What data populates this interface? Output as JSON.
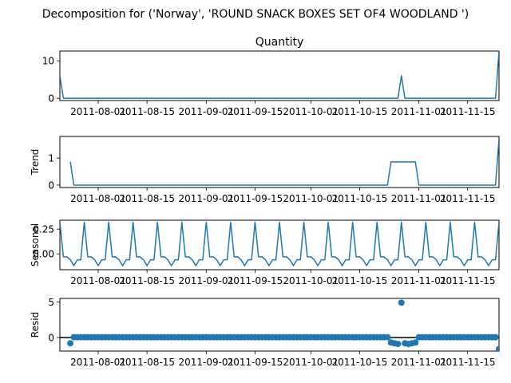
{
  "chart_data": {
    "type": "line",
    "title": "Decomposition for ('Norway', 'ROUND SNACK BOXES SET OF4 WOODLAND ')",
    "x_start": "2011-07-21",
    "x_end": "2011-11-24",
    "x_ticks": [
      "2011-08-01",
      "2011-08-15",
      "2011-09-01",
      "2011-09-15",
      "2011-10-01",
      "2011-10-15",
      "2011-11-01",
      "2011-11-15"
    ],
    "grid": false,
    "panels": [
      {
        "name": "observed",
        "subplot_title": "Quantity",
        "ylabel": "",
        "type": "line",
        "ylim": [
          -0.6,
          12.6
        ],
        "y_ticks": [
          "0",
          "10"
        ],
        "points": [
          [
            "2011-07-21",
            6
          ],
          [
            "2011-07-22",
            0
          ],
          [
            "2011-10-26",
            0
          ],
          [
            "2011-10-27",
            6
          ],
          [
            "2011-10-28",
            0
          ],
          [
            "2011-11-23",
            0
          ],
          [
            "2011-11-24",
            12.6
          ]
        ]
      },
      {
        "name": "trend",
        "subplot_title": "",
        "ylabel": "Trend",
        "type": "line",
        "ylim": [
          -0.09,
          1.8
        ],
        "y_ticks": [
          "0",
          "1"
        ],
        "points": [
          [
            "2011-07-24",
            0.86
          ],
          [
            "2011-07-25",
            0
          ],
          [
            "2011-10-23",
            0
          ],
          [
            "2011-10-24",
            0.86
          ],
          [
            "2011-10-31",
            0.86
          ],
          [
            "2011-11-01",
            0
          ],
          [
            "2011-11-23",
            0
          ],
          [
            "2011-11-24",
            1.71
          ]
        ]
      },
      {
        "name": "seasonal",
        "subplot_title": "",
        "ylabel": "Seasonal",
        "type": "line",
        "ylim": [
          -0.16,
          0.34
        ],
        "y_ticks": [
          "0.25",
          "0.00"
        ],
        "weekly_pattern": [
          0.32,
          -0.03,
          -0.03,
          -0.06,
          -0.12,
          -0.06,
          -0.06
        ],
        "pattern_start": "2011-07-21"
      },
      {
        "name": "resid",
        "subplot_title": "",
        "ylabel": "Resid",
        "type": "scatter",
        "ylim": [
          -1.9,
          5.5
        ],
        "y_ticks": [
          "0",
          "5"
        ],
        "zero_line": true,
        "baseline_value": 0.05,
        "outliers": [
          [
            "2011-07-24",
            -0.8
          ],
          [
            "2011-10-24",
            -0.7
          ],
          [
            "2011-10-25",
            -0.8
          ],
          [
            "2011-10-26",
            -0.9
          ],
          [
            "2011-10-27",
            4.9
          ],
          [
            "2011-10-28",
            -0.8
          ],
          [
            "2011-10-29",
            -0.9
          ],
          [
            "2011-10-30",
            -0.8
          ],
          [
            "2011-10-31",
            -0.7
          ],
          [
            "2011-11-24",
            -1.6
          ]
        ]
      }
    ]
  }
}
